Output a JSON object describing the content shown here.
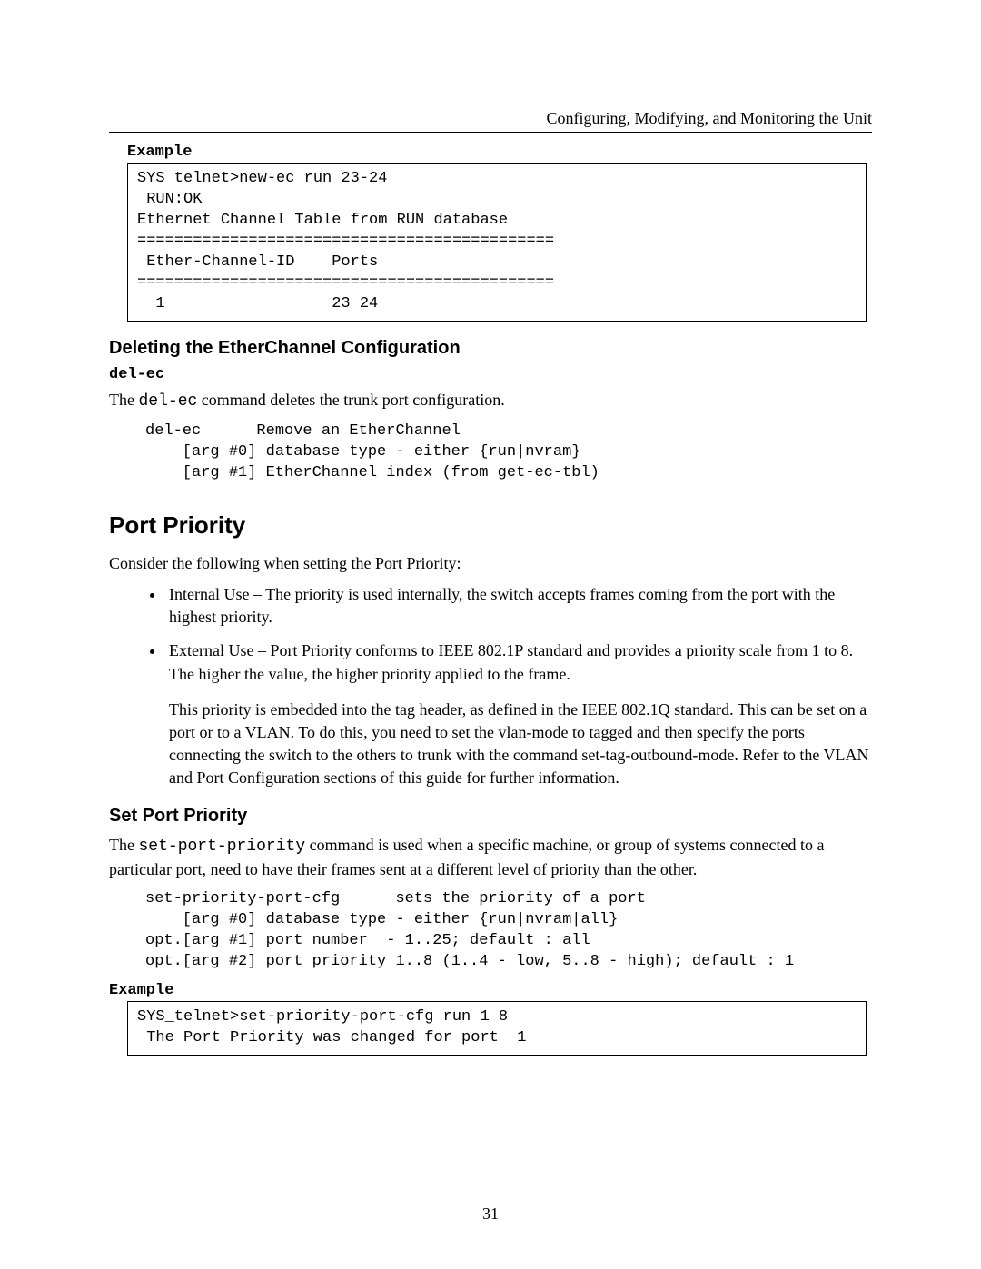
{
  "header": {
    "text": "Configuring, Modifying, and Monitoring the Unit"
  },
  "example1": {
    "label": "Example",
    "code": "SYS_telnet>new-ec run 23-24\n RUN:OK\nEthernet Channel Table from RUN database\n=============================================\n Ether-Channel-ID    Ports\n=============================================\n  1                  23 24"
  },
  "sec_delete": {
    "heading": "Deleting the EtherChannel Configuration",
    "cmd": "del-ec",
    "desc_pre": "The ",
    "desc_cmd": "del-ec",
    "desc_post": " command deletes the trunk port configuration.",
    "code": "del-ec      Remove an EtherChannel\n    [arg #0] database type - either {run|nvram}\n    [arg #1] EtherChannel index (from get-ec-tbl)"
  },
  "sec_priority": {
    "heading": "Port Priority",
    "intro": "Consider the following when setting the Port Priority:",
    "bullet1": "Internal Use – The priority is used internally, the switch accepts frames coming from the port with the highest priority.",
    "bullet2": "External Use – Port Priority conforms to IEEE 802.1P standard and provides a priority scale from 1 to 8.  The higher the value, the higher priority applied to the frame.",
    "sub_para": "This priority is embedded into the tag header, as defined in the IEEE 802.1Q standard. This can be set on a port or to a VLAN.  To do this, you need to set the vlan-mode to tagged and then specify the ports connecting the switch to the others to trunk with the command set-tag-outbound-mode.  Refer to the VLAN and Port Configuration sections of this guide for further information."
  },
  "sec_setport": {
    "heading": "Set Port Priority",
    "desc_pre": "The ",
    "desc_cmd": "set-port-priority",
    "desc_post": " command is used when a specific machine, or group of systems connected to a particular port, need to have their frames sent at a different level of priority than the other.",
    "code": "set-priority-port-cfg      sets the priority of a port\n    [arg #0] database type - either {run|nvram|all}\nopt.[arg #1] port number  - 1..25; default : all\nopt.[arg #2] port priority 1..8 (1..4 - low, 5..8 - high); default : 1"
  },
  "example2": {
    "label": "Example",
    "code": "SYS_telnet>set-priority-port-cfg run 1 8\n The Port Priority was changed for port  1"
  },
  "page_number": "31"
}
